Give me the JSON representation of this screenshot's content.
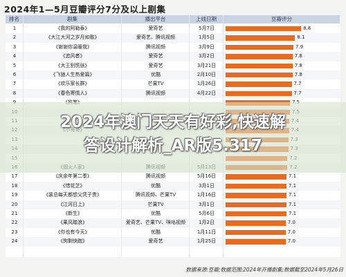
{
  "title": "2024年1—5月豆瓣评分7分及以上剧集",
  "overlay_title_lines": [
    "2024年澳门天天有好彩,快速解",
    "答设计解析_AR版5.317"
  ],
  "source_note": "数据来源:豆瓣;数据范围:2024年开播剧集;数据截至2024年5月26日",
  "chart_data": {
    "type": "bar",
    "orientation": "horizontal",
    "columns": [
      "排名",
      "剧集",
      "播出平台",
      "上线日期",
      "豆瓣评分"
    ],
    "xlim": [
      0,
      10
    ],
    "rows": [
      {
        "rank": "1",
        "name": "《我的阿勒泰》",
        "platform": "爱奇艺",
        "date": "5月7日",
        "score": 8.8
      },
      {
        "rank": "2",
        "name": "《大江大河之岁月如歌》",
        "platform": "爱奇艺、腾讯视频",
        "date": "1月5日",
        "score": 8.1
      },
      {
        "rank": "3",
        "name": "《谢谢你温暖我》",
        "platform": "腾讯视频",
        "date": "3月9日",
        "score": 7.9
      },
      {
        "rank": "4",
        "name": "《追风者》",
        "platform": "爱奇艺",
        "date": "3月2日",
        "score": 7.8
      },
      {
        "rank": "5",
        "name": "《大王别慌张》",
        "platform": "爱奇艺",
        "date": "3月21日",
        "score": 7.8
      },
      {
        "rank": "6",
        "name": "《飞驰人生热爱篇》",
        "platform": "优酷",
        "date": "2月10日",
        "score": 7.8
      },
      {
        "rank": "7",
        "name": "《欢乐家长群》",
        "platform": "芒果TV",
        "date": "1月26日",
        "score": 7.7
      },
      {
        "rank": "8",
        "name": "《春色寄情人》",
        "platform": "腾讯视频",
        "date": "4月22日",
        "score": 7.7
      },
      {
        "rank": "9",
        "name": "《执笔》",
        "platform": "",
        "date": "",
        "score": 7.5
      },
      {
        "rank": "10",
        "name": "",
        "platform": "",
        "date": "",
        "score": 7.5
      },
      {
        "rank": "11",
        "name": "",
        "platform": "",
        "date": "",
        "score": 7.4
      },
      {
        "rank": "12",
        "name": "《小哥哥》",
        "platform": "",
        "date": "",
        "score": 7.4
      },
      {
        "rank": "13",
        "name": "",
        "platform": "",
        "date": "",
        "score": 7.3
      },
      {
        "rank": "14",
        "name": "",
        "platform": "",
        "date": "",
        "score": 7.3
      },
      {
        "rank": "15",
        "name": "",
        "platform": "",
        "date": "",
        "score": 7.2
      },
      {
        "rank": "16",
        "name": "《烟火人家》",
        "platform": "腾讯视频",
        "date": "5月13日",
        "score": 7.2
      },
      {
        "rank": "17",
        "name": "《庆余年第二季》",
        "platform": "腾讯视频",
        "date": "5月16日",
        "score": 7.1
      },
      {
        "rank": "18",
        "name": "《惜花芷》",
        "platform": "优酷",
        "date": "3月1日",
        "score": 7.1
      },
      {
        "rank": "19",
        "name": "《装总每天都想父凭子贵》",
        "platform": "腾讯视频、芒果TV",
        "date": "1月16日",
        "score": 7.1
      },
      {
        "rank": "20",
        "name": "《江河日上》",
        "platform": "芒果TV",
        "date": "3月1日",
        "score": 7.1
      },
      {
        "rank": "21",
        "name": "《新生》",
        "platform": "优酷",
        "date": "5月6日",
        "score": 7.1
      },
      {
        "rank": "22",
        "name": "《果风踏浪》",
        "platform": "爱奇艺、芒果TV、咪咕视频",
        "date": "1月2日",
        "score": 7.0
      },
      {
        "rank": "23",
        "name": "《你也有今天》",
        "platform": "优酷",
        "date": "1月11日",
        "score": 7.0
      },
      {
        "rank": "24",
        "name": "《狗剩快跑》",
        "platform": "爱奇艺",
        "date": "1月25日",
        "score": 7.0
      }
    ]
  },
  "colors": {
    "bar": "#e96b1f",
    "header": "#c9d4e3"
  }
}
